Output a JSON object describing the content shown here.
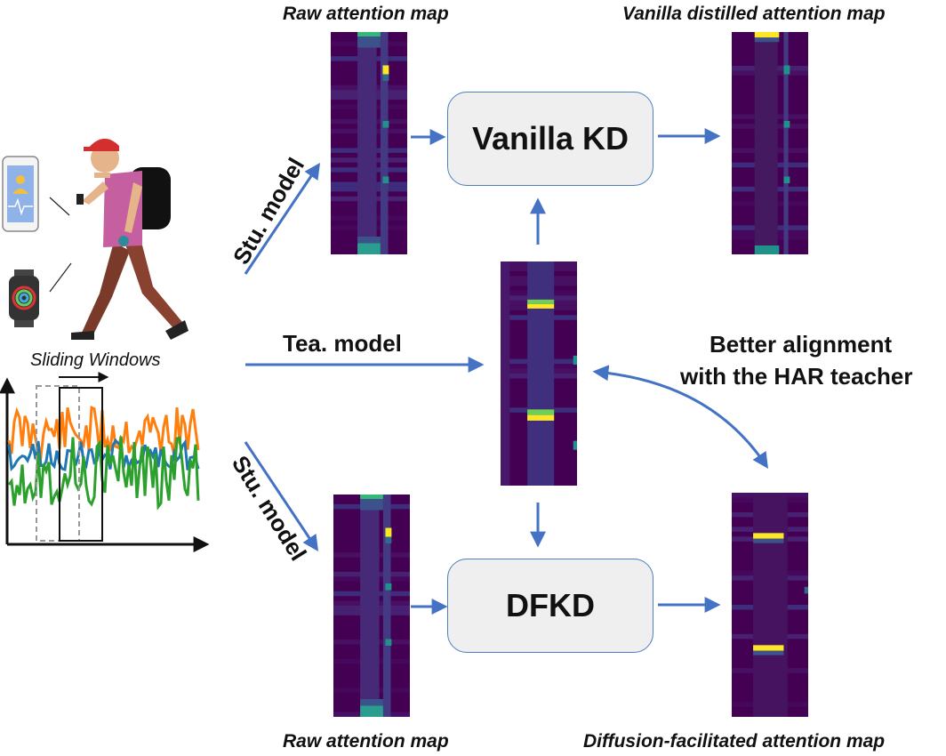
{
  "labels": {
    "raw_top": "Raw attention map",
    "vanilla_map": "Vanilla distilled attention map",
    "raw_bottom": "Raw attention map",
    "diffusion_map": "Diffusion-facilitated attention map",
    "sliding_windows": "Sliding Windows",
    "stu_model_top": "Stu. model",
    "stu_model_bottom": "Stu. model",
    "tea_model": "Tea. model",
    "alignment_line1": "Better alignment",
    "alignment_line2": "with the HAR teacher"
  },
  "boxes": {
    "vanilla_kd": "Vanilla KD",
    "dfkd": "DFKD"
  },
  "colors": {
    "arrow": "#4472c4",
    "map_bg": "#440154",
    "box_fill": "#efefef",
    "box_border": "#4a7fc1",
    "signal_orange": "#ff7f0e",
    "signal_blue": "#1f77b4",
    "signal_green": "#2ca02c"
  },
  "icons": [
    "smartphone-icon",
    "smartwatch-icon",
    "walking-person-icon"
  ]
}
